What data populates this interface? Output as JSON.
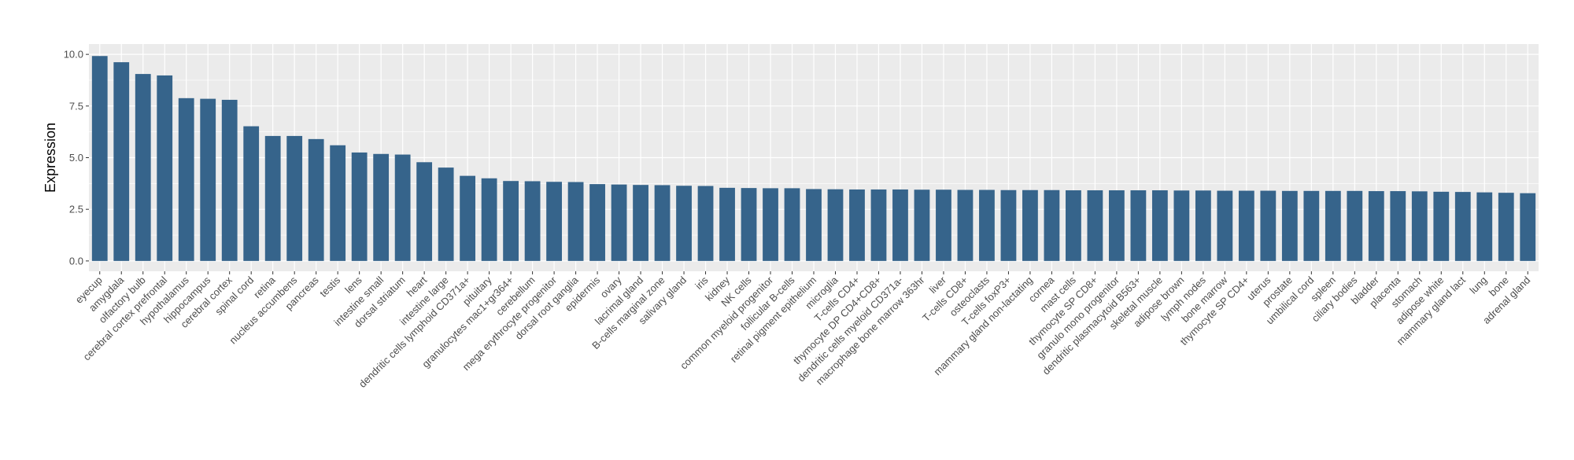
{
  "chart_data": {
    "type": "bar",
    "title": "",
    "xlabel": "",
    "ylabel": "Expression",
    "ylim": [
      -0.5,
      10.5
    ],
    "yticks": [
      0.0,
      2.5,
      5.0,
      7.5,
      10.0
    ],
    "ytick_labels": [
      "0.0",
      "2.5",
      "5.0",
      "7.5",
      "10.0"
    ],
    "grid": true,
    "panel_background": "#ebebeb",
    "grid_color": "#ffffff",
    "bar_color": "#36648b",
    "categories": [
      "eyecup",
      "amygdala",
      "olfactory bulb",
      "cerebral cortex prefrontal",
      "hypothalamus",
      "hippocampus",
      "cerebral cortex",
      "spinal cord",
      "retina",
      "nucleus accumbens",
      "pancreas",
      "testis",
      "lens",
      "intestine small",
      "dorsal striatum",
      "heart",
      "intestine large",
      "dendritic cells lymphoid CD371a+",
      "pituitary",
      "granulocytes mac1+gr364+",
      "cerebellum",
      "mega erythrocyte progenitor",
      "dorsal root ganglia",
      "epidermis",
      "ovary",
      "lacrimal gland",
      "B-cells marginal zone",
      "salivary gland",
      "iris",
      "kidney",
      "NK cells",
      "common myeloid progenitor",
      "follicular B-cells",
      "retinal pigment epithelium",
      "microglia",
      "T-cells CD4+",
      "thymocyte DP CD4+CD8+",
      "dendritic cells myeloid CD371a-",
      "macrophage bone marrow 363hr",
      "liver",
      "T-cells CD8+",
      "osteoclasts",
      "T-cells foxP3+",
      "mammary gland non-lactating",
      "cornea",
      "mast cells",
      "thymocyte SP CD8+",
      "granulo mono progenitor",
      "dendritic plasmacytoid B563+",
      "skeletal muscle",
      "adipose brown",
      "lymph nodes",
      "bone marrow",
      "thymocyte SP CD4+",
      "uterus",
      "prostate",
      "umbilical cord",
      "spleen",
      "ciliary bodies",
      "bladder",
      "placenta",
      "stomach",
      "adipose white",
      "mammary gland  lact",
      "lung",
      "bone",
      "adrenal gland"
    ],
    "values": [
      9.92,
      9.62,
      9.05,
      8.98,
      7.88,
      7.85,
      7.8,
      6.52,
      6.05,
      6.05,
      5.9,
      5.6,
      5.25,
      5.18,
      5.15,
      4.78,
      4.52,
      4.12,
      4.0,
      3.87,
      3.86,
      3.83,
      3.82,
      3.72,
      3.7,
      3.68,
      3.67,
      3.64,
      3.63,
      3.54,
      3.53,
      3.52,
      3.52,
      3.48,
      3.47,
      3.46,
      3.46,
      3.46,
      3.45,
      3.45,
      3.44,
      3.44,
      3.43,
      3.43,
      3.43,
      3.42,
      3.42,
      3.42,
      3.42,
      3.42,
      3.41,
      3.41,
      3.4,
      3.4,
      3.4,
      3.39,
      3.39,
      3.39,
      3.39,
      3.38,
      3.38,
      3.37,
      3.35,
      3.34,
      3.32,
      3.3,
      3.28
    ]
  }
}
